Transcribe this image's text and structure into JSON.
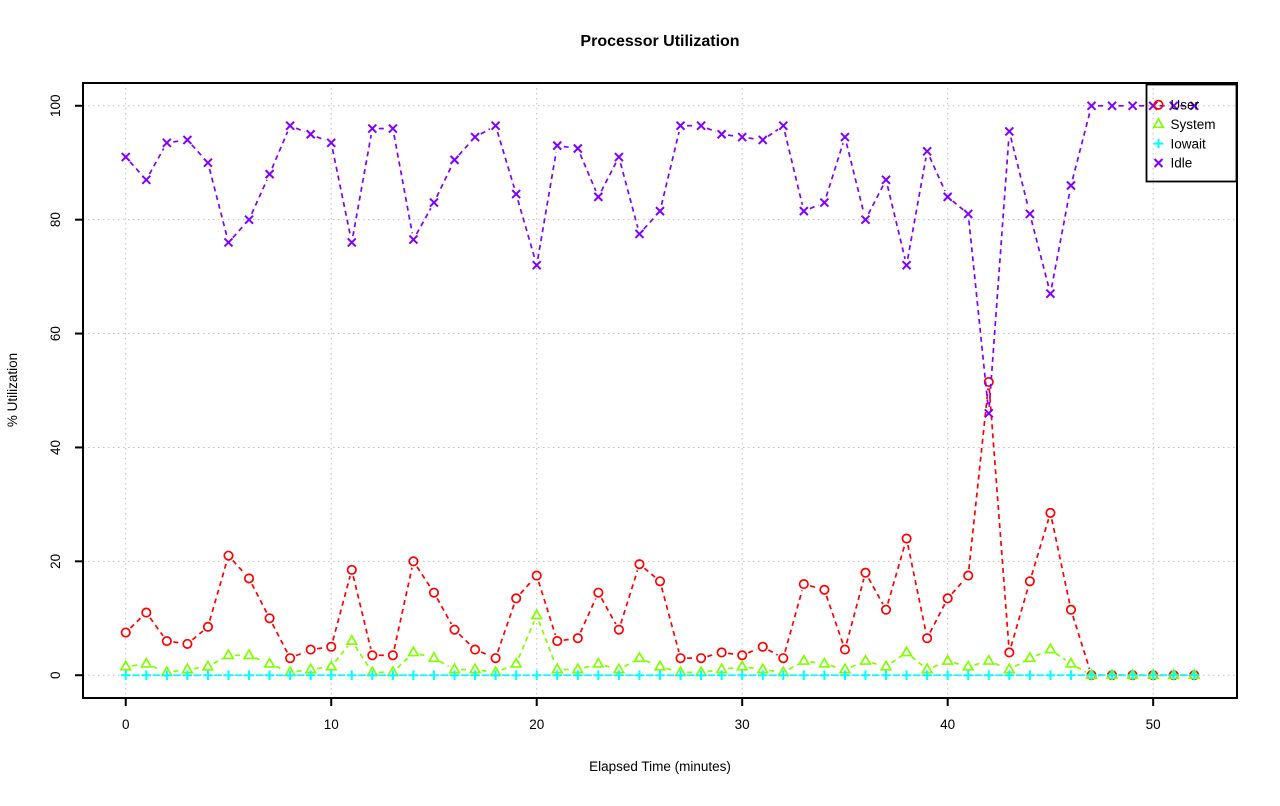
{
  "chart_data": {
    "type": "line",
    "title": "Processor Utilization",
    "xlabel": "Elapsed Time (minutes)",
    "ylabel": "% Utilization",
    "xlim": [
      0,
      52
    ],
    "ylim": [
      0,
      100
    ],
    "xticks": [
      0,
      10,
      20,
      30,
      40,
      50
    ],
    "yticks": [
      0,
      20,
      40,
      60,
      80,
      100
    ],
    "grid": true,
    "grid_style": "dotted",
    "legend_position": "top-right",
    "x": [
      0,
      1,
      2,
      3,
      4,
      5,
      6,
      7,
      8,
      9,
      10,
      11,
      12,
      13,
      14,
      15,
      16,
      17,
      18,
      19,
      20,
      21,
      22,
      23,
      24,
      25,
      26,
      27,
      28,
      29,
      30,
      31,
      32,
      33,
      34,
      35,
      36,
      37,
      38,
      39,
      40,
      41,
      42,
      43,
      44,
      45,
      46,
      47,
      48,
      49,
      50,
      51,
      52
    ],
    "series": [
      {
        "name": "User",
        "color": "#FF0000",
        "marker": "circle",
        "dash": "dashed",
        "values": [
          7.5,
          11,
          6,
          5.5,
          8.5,
          21,
          17,
          10,
          3,
          4.5,
          5,
          18.5,
          3.5,
          3.5,
          20,
          14.5,
          8,
          4.5,
          3,
          13.5,
          17.5,
          6,
          6.5,
          14.5,
          8,
          19.5,
          16.5,
          3,
          3,
          4,
          3.5,
          5,
          3,
          16,
          15,
          4.5,
          18,
          11.5,
          24,
          6.5,
          13.5,
          17.5,
          51.5,
          4,
          16.5,
          28.5,
          11.5,
          0,
          0,
          0,
          0,
          0,
          0
        ]
      },
      {
        "name": "System",
        "color": "#80FF00",
        "marker": "triangle",
        "dash": "dashed",
        "values": [
          1.5,
          2,
          0.5,
          1,
          1.5,
          3.5,
          3.5,
          2,
          0.5,
          1,
          1.5,
          6,
          0.5,
          0.5,
          4,
          3,
          1,
          1,
          0.5,
          2,
          10.5,
          1,
          1,
          2,
          1,
          3,
          1.5,
          0.5,
          0.5,
          1,
          1.5,
          1,
          0.5,
          2.5,
          2,
          1,
          2.5,
          1.5,
          4,
          1,
          2.5,
          1.5,
          2.5,
          1,
          3,
          4.5,
          2,
          0,
          0,
          0,
          0,
          0,
          0
        ]
      },
      {
        "name": "Iowait",
        "color": "#00FFFF",
        "marker": "plus",
        "dash": "dashdot",
        "values": [
          0,
          0,
          0,
          0,
          0,
          0,
          0,
          0,
          0,
          0,
          0,
          0,
          0,
          0,
          0,
          0,
          0,
          0,
          0,
          0,
          0,
          0,
          0,
          0,
          0,
          0,
          0,
          0,
          0,
          0,
          0,
          0,
          0,
          0,
          0,
          0,
          0,
          0,
          0,
          0,
          0,
          0,
          0,
          0,
          0,
          0,
          0,
          0,
          0,
          0,
          0,
          0,
          0
        ]
      },
      {
        "name": "Idle",
        "color": "#8000FF",
        "marker": "x",
        "dash": "dashed",
        "values": [
          91,
          87,
          93.5,
          94,
          90,
          76,
          80,
          88,
          96.5,
          95,
          93.5,
          76,
          96,
          96,
          76.5,
          83,
          90.5,
          94.5,
          96.5,
          84.5,
          72,
          93,
          92.5,
          84,
          91,
          77.5,
          81.5,
          96.5,
          96.5,
          95,
          94.5,
          94,
          96.5,
          81.5,
          83,
          94.5,
          80,
          87,
          72,
          92,
          84,
          81,
          46,
          95.5,
          81,
          67,
          86,
          100,
          100,
          100,
          100,
          100,
          100
        ]
      }
    ]
  },
  "colors": {
    "grid": "#bfbfbf",
    "axis": "#000000",
    "background": "#ffffff"
  }
}
